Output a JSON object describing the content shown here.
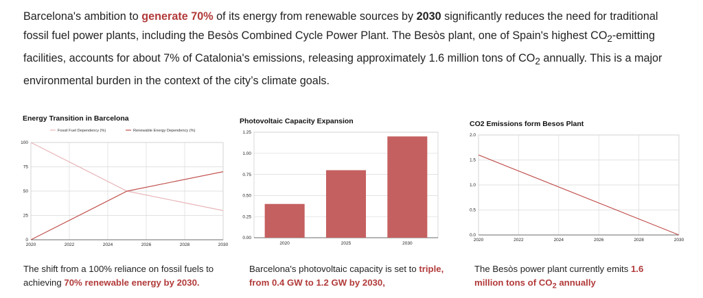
{
  "intro": {
    "p1": "Barcelona's ambition to ",
    "h1": "generate 70%",
    "p2": " of its energy from renewable sources by ",
    "b1": "2030",
    "p3": " significantly reduces the need for traditional fossil fuel power plants, including the Besòs Combined Cycle Power Plant. The Besòs plant, one of Spain's highest CO",
    "sub1": "2",
    "p4": "-emitting facilities, accounts for about 7% of Catalonia's emissions, releasing approximately 1.6 million tons of CO",
    "sub2": "2",
    "p5": " annually. This is a major environmental burden in the context of the city’s climate goals."
  },
  "colors": {
    "accent": "#b23a3a",
    "bar": "#c56060",
    "light_line": "#e8b4b8",
    "dark_line": "#c0504d"
  },
  "captions": {
    "c1_a": "The shift from a 100% reliance on fossil fuels to achieving ",
    "c1_b": "70% renewable energy by 2030.",
    "c2_a": "Barcelona's photovoltaic capacity is set to ",
    "c2_b": "triple, from 0.4 GW to 1.2 GW by 2030,",
    "c3_a": "The Besòs power plant currently emits ",
    "c3_b": "1.6 million tons of CO",
    "c3_sub": "2",
    "c3_c": " annually"
  },
  "chart_data": [
    {
      "type": "line",
      "title": "Energy Transition in Barcelona",
      "x": [
        2020,
        2025,
        2030
      ],
      "xticks": [
        "2020",
        "2022",
        "2024",
        "2026",
        "2028",
        "2030"
      ],
      "yticks": [
        "0",
        "25",
        "50",
        "75",
        "100"
      ],
      "ylim": [
        0,
        100
      ],
      "series": [
        {
          "name": "Fossil Fuel Dependency (%)",
          "values": [
            100,
            50,
            30
          ]
        },
        {
          "name": "Renewable Energy Dependency (%)",
          "values": [
            0,
            50,
            70
          ]
        }
      ],
      "legend": "top",
      "grid": true
    },
    {
      "type": "bar",
      "title": "Photovoltaic Capacity Expansion",
      "categories": [
        "2020",
        "2025",
        "2030"
      ],
      "values": [
        0.4,
        0.8,
        1.2
      ],
      "yticks": [
        "0.00",
        "0.25",
        "0.50",
        "0.75",
        "1.00",
        "1.25"
      ],
      "ylim": [
        0,
        1.25
      ],
      "grid": true
    },
    {
      "type": "line",
      "title": "CO2 Emissions form Besos Plant",
      "x": [
        2020,
        2030
      ],
      "xticks": [
        "2020",
        "2022",
        "2024",
        "2026",
        "2028",
        "2030"
      ],
      "yticks": [
        "0.0",
        "0.5",
        "1.0",
        "1.5",
        "2.0"
      ],
      "ylim": [
        0,
        2.0
      ],
      "series": [
        {
          "values": [
            1.6,
            0.0
          ]
        }
      ],
      "grid": true
    }
  ]
}
